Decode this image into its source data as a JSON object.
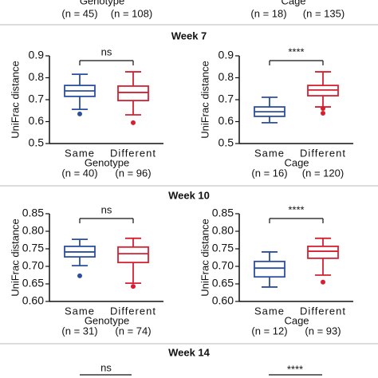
{
  "top": {
    "labels": [
      "Genotype",
      "Cage"
    ],
    "n_labels": [
      [
        "(n = 45)",
        "(n = 108)"
      ],
      [
        "(n = 18)",
        "(n = 135)"
      ]
    ]
  },
  "section_titles": [
    "Week 7",
    "Week 10",
    "Week 14"
  ],
  "week14_significance": [
    "ns",
    "****"
  ],
  "chart_data": [
    {
      "type": "box",
      "ylabel": "UniFrac distance",
      "xlabel": "Genotype",
      "categories": [
        "Same",
        "Different"
      ],
      "n_labels": [
        "(n = 40)",
        "(n = 96)"
      ],
      "significance": "ns",
      "ylim": [
        0.5,
        0.9
      ],
      "yticks": [
        0.5,
        0.6,
        0.7,
        0.8,
        0.9
      ],
      "boxes": [
        {
          "color": "#2b4fa0",
          "whislo": 0.656,
          "q1": 0.715,
          "median": 0.74,
          "q3": 0.765,
          "whishi": 0.816,
          "fliers": [
            0.635
          ]
        },
        {
          "color": "#d62031",
          "whislo": 0.631,
          "q1": 0.696,
          "median": 0.733,
          "q3": 0.762,
          "whishi": 0.827,
          "fliers": [
            0.595
          ]
        }
      ]
    },
    {
      "type": "box",
      "ylabel": "UniFrac distance",
      "xlabel": "Cage",
      "categories": [
        "Same",
        "Different"
      ],
      "n_labels": [
        "(n = 16)",
        "(n = 120)"
      ],
      "significance": "****",
      "ylim": [
        0.5,
        0.9
      ],
      "yticks": [
        0.5,
        0.6,
        0.7,
        0.8,
        0.9
      ],
      "boxes": [
        {
          "color": "#2b4fa0",
          "whislo": 0.595,
          "q1": 0.624,
          "median": 0.645,
          "q3": 0.667,
          "whishi": 0.711,
          "fliers": []
        },
        {
          "color": "#d62031",
          "whislo": 0.667,
          "q1": 0.718,
          "median": 0.744,
          "q3": 0.765,
          "whishi": 0.827,
          "fliers": [
            0.638,
            0.66
          ]
        }
      ]
    },
    {
      "type": "box",
      "ylabel": "UniFrac distance",
      "xlabel": "Genotype",
      "categories": [
        "Same",
        "Different"
      ],
      "n_labels": [
        "(n = 31)",
        "(n = 74)"
      ],
      "significance": "ns",
      "ylim": [
        0.6,
        0.85
      ],
      "yticks": [
        {
          "value": 0.6,
          "label": "0.60"
        },
        0.65,
        {
          "value": 0.7,
          "label": "0.70"
        },
        0.75,
        {
          "value": 0.8,
          "label": "0.80"
        },
        0.85
      ],
      "boxes": [
        {
          "color": "#2b4fa0",
          "whislo": 0.702,
          "q1": 0.727,
          "median": 0.741,
          "q3": 0.757,
          "whishi": 0.777,
          "fliers": [
            0.673
          ]
        },
        {
          "color": "#d62031",
          "whislo": 0.652,
          "q1": 0.711,
          "median": 0.736,
          "q3": 0.755,
          "whishi": 0.78,
          "fliers": [
            0.643
          ]
        }
      ]
    },
    {
      "type": "box",
      "ylabel": "UniFrac distance",
      "xlabel": "Cage",
      "categories": [
        "Same",
        "Different"
      ],
      "n_labels": [
        "(n = 12)",
        "(n = 93)"
      ],
      "significance": "****",
      "ylim": [
        0.6,
        0.85
      ],
      "yticks": [
        {
          "value": 0.6,
          "label": "0.60"
        },
        0.65,
        {
          "value": 0.7,
          "label": "0.70"
        },
        0.75,
        {
          "value": 0.8,
          "label": "0.80"
        },
        0.85
      ],
      "boxes": [
        {
          "color": "#2b4fa0",
          "whislo": 0.641,
          "q1": 0.67,
          "median": 0.695,
          "q3": 0.714,
          "whishi": 0.741,
          "fliers": []
        },
        {
          "color": "#d62031",
          "whislo": 0.675,
          "q1": 0.723,
          "median": 0.743,
          "q3": 0.757,
          "whishi": 0.78,
          "fliers": [
            0.655
          ]
        }
      ]
    }
  ]
}
